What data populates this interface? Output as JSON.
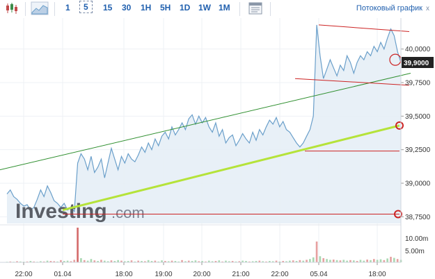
{
  "toolbar": {
    "icons": [
      "candlestick-icon",
      "area-chart-icon",
      "settings-panel-icon"
    ],
    "timeframes": [
      {
        "label": "1",
        "active": false
      },
      {
        "label": "5",
        "active": true
      },
      {
        "label": "15",
        "active": false
      },
      {
        "label": "30",
        "active": false
      },
      {
        "label": "1H",
        "active": false
      },
      {
        "label": "5H",
        "active": false
      },
      {
        "label": "1D",
        "active": false
      },
      {
        "label": "1W",
        "active": false
      },
      {
        "label": "1M",
        "active": false
      }
    ],
    "stream_label": "Потоковый график",
    "stream_close": "x"
  },
  "logo": {
    "text": "Investing",
    "suffix": ".com"
  },
  "colors": {
    "line": "#6a9fca",
    "fill": "#e6eef6",
    "trend_green": "#2f8f2f",
    "trend_lime": "#b5e33a",
    "red": "#cc2222",
    "volume_up": "#a9d8b2",
    "volume_down": "#e6a0a0",
    "price_tag": "#222222"
  },
  "chart_data": {
    "type": "area",
    "y_ticks": [
      "40,0000",
      "39,7500",
      "39,5000",
      "39,2500",
      "39,0000",
      "38,7500"
    ],
    "ylim": [
      38.7,
      40.2
    ],
    "last_price": "39,9000",
    "x_ticks": [
      "22:00",
      "01.04",
      "18:00",
      "19:00",
      "20:00",
      "21:00",
      "22:00",
      "05.04",
      "18:00"
    ],
    "volume_ticks": [
      "10.00m",
      "5.00m"
    ],
    "price_series": [
      38.92,
      38.95,
      38.9,
      38.88,
      38.85,
      38.83,
      38.84,
      38.8,
      38.82,
      38.88,
      38.95,
      38.9,
      38.98,
      38.93,
      38.87,
      38.85,
      38.82,
      38.85,
      38.8,
      38.82,
      38.79,
      39.15,
      39.22,
      39.18,
      39.1,
      39.2,
      39.08,
      39.12,
      39.18,
      39.04,
      39.15,
      39.26,
      39.18,
      39.1,
      39.2,
      39.15,
      39.22,
      39.18,
      39.16,
      39.21,
      39.27,
      39.23,
      39.3,
      39.25,
      39.33,
      39.28,
      39.35,
      39.38,
      39.33,
      39.42,
      39.36,
      39.4,
      39.45,
      39.4,
      39.48,
      39.51,
      39.44,
      39.5,
      39.45,
      39.49,
      39.42,
      39.38,
      39.45,
      39.35,
      39.4,
      39.3,
      39.34,
      39.36,
      39.28,
      39.32,
      39.37,
      39.33,
      39.3,
      39.38,
      39.32,
      39.4,
      39.36,
      39.42,
      39.47,
      39.44,
      39.49,
      39.42,
      39.46,
      39.4,
      39.38,
      39.34,
      39.3,
      39.27,
      39.3,
      39.35,
      39.4,
      39.5,
      40.18,
      39.95,
      39.78,
      39.85,
      39.92,
      39.86,
      39.8,
      39.88,
      39.84,
      39.95,
      39.9,
      39.82,
      39.9,
      39.95,
      39.92,
      39.98,
      39.95,
      40.02,
      39.98,
      40.05,
      40.0,
      40.08,
      40.15,
      40.1,
      39.98,
      39.9
    ],
    "volume_series": [
      0.2,
      0.3,
      0.2,
      0.4,
      0.3,
      0.2,
      0.3,
      0.5,
      0.3,
      0.2,
      0.4,
      0.3,
      0.6,
      0.5,
      0.4,
      0.3,
      0.8,
      0.5,
      0.6,
      0.4,
      0.9,
      12.5,
      1.5,
      0.8,
      0.6,
      1.2,
      0.7,
      0.5,
      0.9,
      0.6,
      0.4,
      0.7,
      0.5,
      0.8,
      0.6,
      0.4,
      0.5,
      0.7,
      0.3,
      0.6,
      0.5,
      0.4,
      0.8,
      0.5,
      0.6,
      0.3,
      0.7,
      0.5,
      0.4,
      0.6,
      0.5,
      0.3,
      0.8,
      0.4,
      0.6,
      0.5,
      0.7,
      0.4,
      0.5,
      0.3,
      0.6,
      0.4,
      0.5,
      0.7,
      0.3,
      0.6,
      0.4,
      0.5,
      0.3,
      0.4,
      0.6,
      0.5,
      0.3,
      0.4,
      0.5,
      0.6,
      0.4,
      0.3,
      0.5,
      0.4,
      0.6,
      0.3,
      0.5,
      0.4,
      0.6,
      0.7,
      0.5,
      0.8,
      0.6,
      0.9,
      1.2,
      1.8,
      7.5,
      2.2,
      1.5,
      1.2,
      0.9,
      1.0,
      0.8,
      0.7,
      0.9,
      0.6,
      0.8,
      0.7,
      0.5,
      0.9,
      0.6,
      1.0,
      0.8,
      1.2,
      0.9,
      1.1,
      0.8,
      1.4,
      2.0,
      1.6,
      1.2,
      0.9
    ],
    "volume_down_flags": [
      0,
      1,
      0,
      1,
      0,
      0,
      1,
      0,
      1,
      0,
      0,
      1,
      0,
      1,
      1,
      0,
      1,
      0,
      0,
      1,
      1,
      1,
      0,
      1,
      0,
      0,
      1,
      0,
      1,
      0,
      0,
      1,
      0,
      0,
      1,
      0,
      0,
      1,
      0,
      1,
      0,
      1,
      0,
      0,
      1,
      0,
      0,
      1,
      0,
      1,
      0,
      0,
      1,
      0,
      1,
      0,
      0,
      1,
      0,
      1,
      0,
      0,
      1,
      0,
      1,
      0,
      0,
      1,
      0,
      1,
      0,
      0,
      1,
      0,
      0,
      1,
      0,
      1,
      0,
      0,
      1,
      0,
      1,
      0,
      0,
      1,
      0,
      1,
      0,
      1,
      0,
      0,
      1,
      0,
      1,
      0,
      0,
      1,
      0,
      1,
      0,
      0,
      1,
      0,
      1,
      0,
      0,
      1,
      0,
      1,
      0,
      0,
      1,
      0,
      1,
      0,
      1,
      0
    ],
    "annotations": {
      "green_trend": [
        [
          0,
          39.1
        ],
        [
          590,
          39.82
        ]
      ],
      "lime_trend": [
        [
          90,
          38.8
        ],
        [
          574,
          39.43
        ]
      ],
      "red_channel_top": [
        [
          458,
          40.18
        ],
        [
          588,
          40.13
        ]
      ],
      "red_channel_bottom": [
        [
          424,
          39.78
        ],
        [
          588,
          39.73
        ]
      ],
      "red_level_low": [
        [
          90,
          38.77
        ],
        [
          574,
          38.77
        ]
      ],
      "red_level_mid": [
        [
          438,
          39.24
        ],
        [
          574,
          39.24
        ]
      ],
      "circles": [
        [
          568,
          39.92
        ],
        [
          574,
          39.43
        ],
        [
          572,
          38.77
        ]
      ]
    }
  }
}
